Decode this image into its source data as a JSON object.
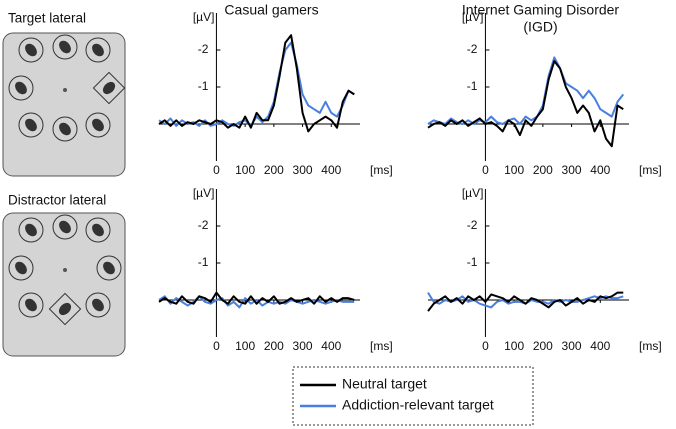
{
  "row_labels": [
    "Target lateral",
    "Distractor lateral"
  ],
  "legend": [
    {
      "name": "Neutral target",
      "color": "#000000"
    },
    {
      "name": "Addiction-relevant target",
      "color": "#4a7fe0"
    }
  ],
  "chart_data": [
    {
      "type": "line",
      "title": "Casual gamers",
      "xlabel": "[ms]",
      "ylabel": "[µV]",
      "x": [
        -200,
        -180,
        -160,
        -140,
        -120,
        -100,
        -80,
        -60,
        -40,
        -20,
        0,
        20,
        40,
        60,
        80,
        100,
        120,
        140,
        160,
        180,
        200,
        220,
        240,
        260,
        280,
        300,
        320,
        340,
        360,
        380,
        400,
        420,
        440,
        460,
        480
      ],
      "xlim": [
        -200,
        500
      ],
      "xticks": [
        0,
        100,
        200,
        300,
        400
      ],
      "ylim": [
        1,
        -3
      ],
      "yticks": [
        -2,
        -1
      ],
      "series": [
        {
          "values": [
            0.0,
            -0.1,
            0.05,
            -0.1,
            0.05,
            -0.05,
            0.0,
            -0.1,
            -0.05,
            0.0,
            -0.1,
            -0.05,
            0.1,
            0.0,
            0.1,
            -0.2,
            0.1,
            -0.3,
            -0.1,
            -0.1,
            -0.5,
            -1.3,
            -2.2,
            -2.4,
            -1.5,
            -0.3,
            0.2,
            0.0,
            -0.1,
            -0.2,
            -0.1,
            0.1,
            -0.6,
            -0.9,
            -0.8
          ]
        },
        {
          "values": [
            -0.1,
            0.0,
            -0.15,
            0.05,
            -0.1,
            0.0,
            -0.05,
            0.05,
            -0.1,
            0.05,
            0.0,
            -0.1,
            0.0,
            0.05,
            -0.05,
            -0.1,
            0.05,
            -0.2,
            -0.05,
            -0.2,
            -0.6,
            -1.4,
            -2.0,
            -2.2,
            -1.6,
            -0.8,
            -0.5,
            -0.4,
            -0.3,
            -0.6,
            -0.3,
            -0.2,
            -0.5,
            -0.9,
            -0.8
          ]
        }
      ]
    },
    {
      "type": "line",
      "title": "Internet Gaming Disorder",
      "subtitle": "(IGD)",
      "xlabel": "[ms]",
      "ylabel": "[µV]",
      "x": [
        -200,
        -180,
        -160,
        -140,
        -120,
        -100,
        -80,
        -60,
        -40,
        -20,
        0,
        20,
        40,
        60,
        80,
        100,
        120,
        140,
        160,
        180,
        200,
        220,
        240,
        260,
        280,
        300,
        320,
        340,
        360,
        380,
        400,
        420,
        440,
        460,
        480
      ],
      "xlim": [
        -200,
        500
      ],
      "xticks": [
        0,
        100,
        200,
        300,
        400
      ],
      "ylim": [
        1,
        -3
      ],
      "yticks": [
        -2,
        -1
      ],
      "series": [
        {
          "values": [
            0.1,
            0.0,
            -0.05,
            0.05,
            -0.1,
            0.0,
            -0.1,
            0.05,
            -0.05,
            -0.15,
            0.0,
            -0.05,
            0.05,
            0.2,
            -0.1,
            0.0,
            0.3,
            -0.1,
            0.05,
            -0.2,
            -0.4,
            -1.2,
            -1.7,
            -1.5,
            -1.0,
            -0.7,
            -0.3,
            -0.5,
            -0.3,
            0.2,
            -0.1,
            0.4,
            0.6,
            -0.5,
            -0.4
          ]
        },
        {
          "values": [
            0.0,
            -0.1,
            -0.05,
            0.0,
            -0.15,
            -0.05,
            0.0,
            -0.1,
            0.0,
            -0.1,
            -0.05,
            -0.2,
            -0.05,
            0.0,
            -0.1,
            -0.15,
            0.0,
            -0.2,
            -0.1,
            -0.2,
            -0.5,
            -1.3,
            -1.8,
            -1.5,
            -1.1,
            -1.0,
            -0.9,
            -0.7,
            -0.9,
            -0.7,
            -0.4,
            -0.3,
            -0.2,
            -0.6,
            -0.8
          ]
        }
      ]
    },
    {
      "type": "line",
      "xlabel": "[ms]",
      "ylabel": "[µV]",
      "x": [
        -200,
        -180,
        -160,
        -140,
        -120,
        -100,
        -80,
        -60,
        -40,
        -20,
        0,
        20,
        40,
        60,
        80,
        100,
        120,
        140,
        160,
        180,
        200,
        220,
        240,
        260,
        280,
        300,
        320,
        340,
        360,
        380,
        400,
        420,
        440,
        460,
        480
      ],
      "xlim": [
        -200,
        500
      ],
      "xticks": [
        0,
        100,
        200,
        300,
        400
      ],
      "ylim": [
        1,
        -3
      ],
      "yticks": [
        -2,
        -1
      ],
      "series": [
        {
          "values": [
            0.05,
            -0.05,
            0.05,
            0.1,
            -0.1,
            0.05,
            0.1,
            -0.1,
            -0.05,
            0.05,
            -0.2,
            0.0,
            0.1,
            -0.1,
            0.05,
            0.1,
            -0.1,
            0.1,
            -0.05,
            0.05,
            -0.1,
            0.1,
            0.05,
            -0.05,
            0.05,
            0.0,
            -0.05,
            0.1,
            -0.1,
            0.05,
            -0.05,
            0.05,
            -0.05,
            -0.05,
            0.0
          ]
        },
        {
          "values": [
            0.0,
            -0.1,
            0.1,
            -0.05,
            0.05,
            0.15,
            0.05,
            -0.1,
            0.05,
            0.1,
            0.0,
            -0.05,
            0.15,
            0.05,
            0.2,
            -0.05,
            0.1,
            0.0,
            0.15,
            0.05,
            0.1,
            0.05,
            0.1,
            0.0,
            0.05,
            0.1,
            0.05,
            0.0,
            0.05,
            0.1,
            0.05,
            0.0,
            0.05,
            0.05,
            0.05
          ]
        }
      ]
    },
    {
      "type": "line",
      "xlabel": "[ms]",
      "ylabel": "[µV]",
      "x": [
        -200,
        -180,
        -160,
        -140,
        -120,
        -100,
        -80,
        -60,
        -40,
        -20,
        0,
        20,
        40,
        60,
        80,
        100,
        120,
        140,
        160,
        180,
        200,
        220,
        240,
        260,
        280,
        300,
        320,
        340,
        360,
        380,
        400,
        420,
        440,
        460,
        480
      ],
      "xlim": [
        -200,
        500
      ],
      "xticks": [
        0,
        100,
        200,
        300,
        400
      ],
      "ylim": [
        1,
        -3
      ],
      "yticks": [
        -2,
        -1
      ],
      "series": [
        {
          "values": [
            0.3,
            0.1,
            0.0,
            -0.1,
            0.05,
            -0.05,
            0.1,
            -0.1,
            0.0,
            -0.1,
            0.05,
            -0.15,
            -0.1,
            -0.05,
            0.05,
            -0.1,
            0.0,
            0.1,
            -0.05,
            0.0,
            0.1,
            0.2,
            0.05,
            0.0,
            0.15,
            0.05,
            -0.05,
            0.1,
            0.0,
            0.05,
            -0.1,
            -0.05,
            -0.1,
            -0.2,
            -0.2
          ]
        },
        {
          "values": [
            -0.2,
            0.05,
            0.1,
            0.0,
            0.05,
            0.0,
            -0.1,
            0.05,
            0.0,
            0.1,
            0.15,
            0.2,
            0.05,
            0.0,
            0.1,
            0.05,
            0.05,
            0.1,
            0.0,
            0.05,
            0.05,
            0.1,
            0.0,
            0.05,
            0.0,
            0.05,
            0.05,
            0.0,
            -0.05,
            -0.1,
            -0.05,
            -0.1,
            -0.05,
            -0.05,
            -0.1
          ]
        }
      ]
    }
  ]
}
